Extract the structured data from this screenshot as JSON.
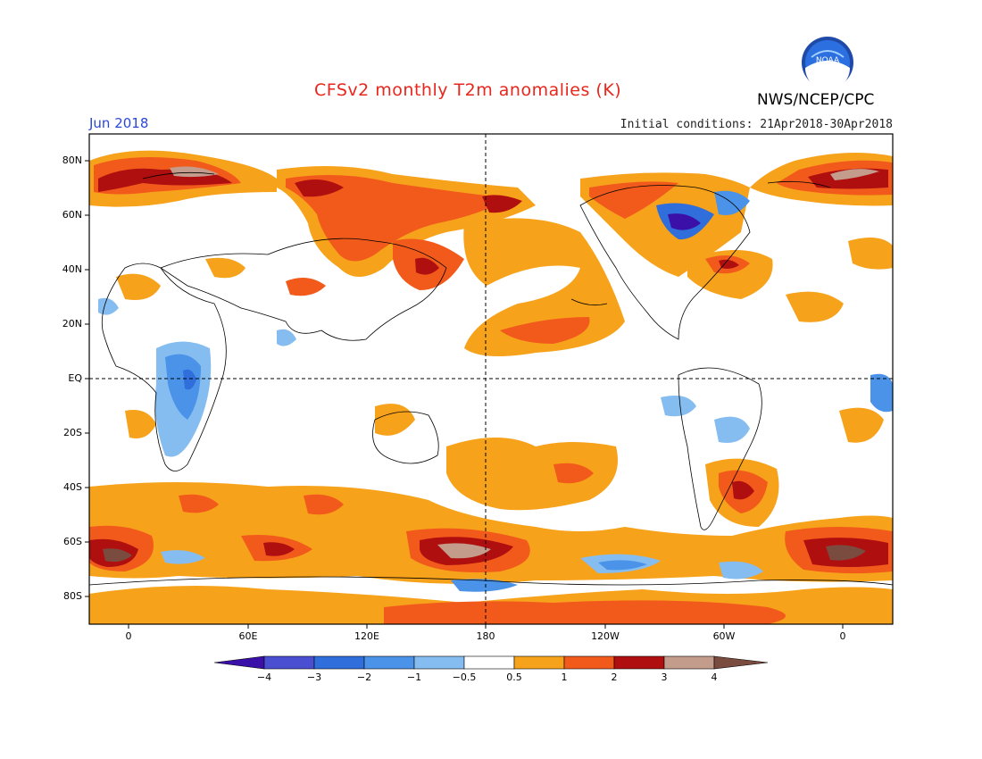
{
  "title": "CFSv2 monthly T2m anomalies (K)",
  "month": "Jun 2018",
  "init": "Initial conditions: 21Apr2018-30Apr2018",
  "org": "NWS/NCEP/CPC",
  "logo_text": "NOAA",
  "lat_labels": [
    "80N",
    "60N",
    "40N",
    "20N",
    "EQ",
    "20S",
    "40S",
    "60S",
    "80S"
  ],
  "lon_labels": [
    "0",
    "60E",
    "120E",
    "180",
    "120W",
    "60W",
    "0"
  ],
  "colorbar": {
    "labels": [
      "−4",
      "−3",
      "−2",
      "−1",
      "−0.5",
      "0.5",
      "1",
      "2",
      "3",
      "4"
    ],
    "colors": [
      "#3a10a8",
      "#4a4ed0",
      "#2f6edb",
      "#4a93e8",
      "#86bdf0",
      "#ffffff",
      "#f7a21b",
      "#f25a1c",
      "#b00f0f",
      "#c49c8c",
      "#7a4b3f"
    ]
  },
  "palette": {
    "orange": "#f7a21b",
    "red": "#f25a1c",
    "darkred": "#b00f0f",
    "tan": "#c49c8c",
    "brown": "#7a4b3f",
    "lightblue": "#86bdf0",
    "blue": "#4a93e8",
    "midblue": "#2f6edb",
    "navy": "#3a10a8"
  }
}
